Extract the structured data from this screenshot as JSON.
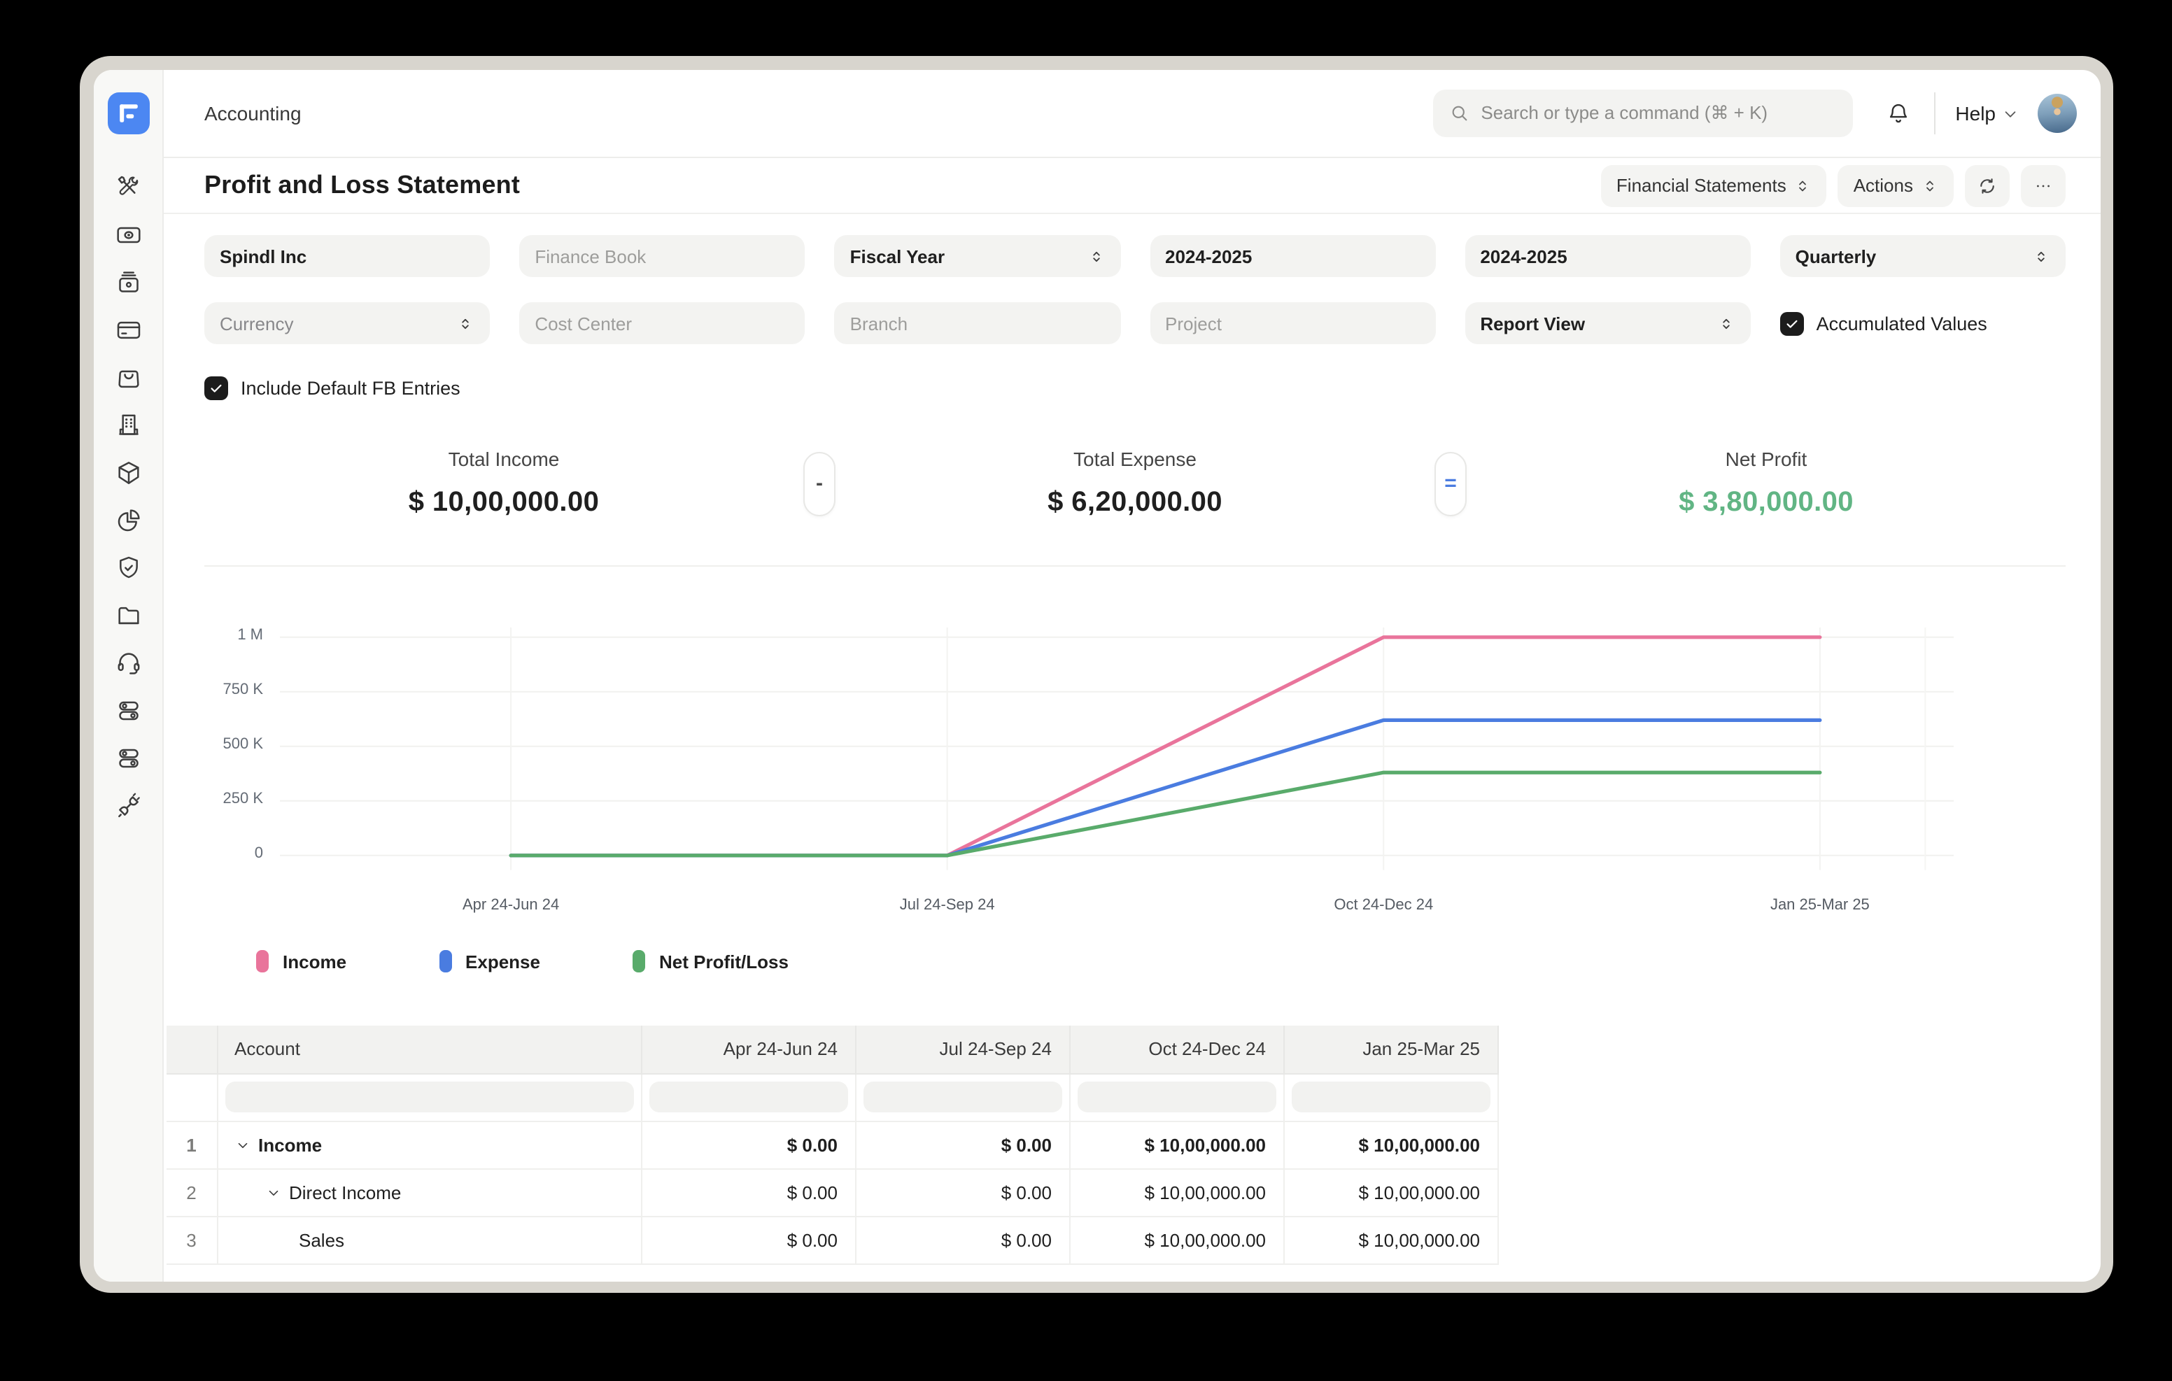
{
  "app": {
    "workspace_title": "Accounting"
  },
  "topbar": {
    "search_placeholder": "Search or type a command (⌘ + K)",
    "help_label": "Help"
  },
  "page": {
    "title": "Profit and Loss Statement",
    "report_group_label": "Financial Statements",
    "actions_label": "Actions"
  },
  "filters": {
    "company": "Spindl Inc",
    "finance_book_placeholder": "Finance Book",
    "filter_based_on": "Fiscal Year",
    "from_fiscal_year": "2024-2025",
    "to_fiscal_year": "2024-2025",
    "periodicity": "Quarterly",
    "currency": "Currency",
    "cost_center_placeholder": "Cost Center",
    "branch_placeholder": "Branch",
    "project_placeholder": "Project",
    "report_view": "Report View",
    "accumulated_values_label": "Accumulated Values",
    "include_default_fb_label": "Include Default FB Entries"
  },
  "summary": {
    "total_income_label": "Total Income",
    "total_income": "$ 10,00,000.00",
    "minus_sign": "-",
    "total_expense_label": "Total Expense",
    "total_expense": "$ 6,20,000.00",
    "equals_sign": "=",
    "net_profit_label": "Net Profit",
    "net_profit": "$ 3,80,000.00"
  },
  "chart_data": {
    "type": "line",
    "categories": [
      "Apr 24-Jun 24",
      "Jul 24-Sep 24",
      "Oct 24-Dec 24",
      "Jan 25-Mar 25"
    ],
    "series": [
      {
        "name": "Income",
        "color": "#e9749b",
        "values": [
          0,
          0,
          1000000,
          1000000
        ]
      },
      {
        "name": "Expense",
        "color": "#4a7ce0",
        "values": [
          0,
          0,
          620000,
          620000
        ]
      },
      {
        "name": "Net Profit/Loss",
        "color": "#59ab6b",
        "values": [
          0,
          0,
          380000,
          380000
        ]
      }
    ],
    "ylim": [
      0,
      1000000
    ],
    "yticks": [
      {
        "value": 0,
        "label": "0"
      },
      {
        "value": 250000,
        "label": "250 K"
      },
      {
        "value": 500000,
        "label": "500 K"
      },
      {
        "value": 750000,
        "label": "750 K"
      },
      {
        "value": 1000000,
        "label": "1 M"
      }
    ],
    "grid": true,
    "legend_position": "bottom",
    "title": "",
    "xlabel": "",
    "ylabel": ""
  },
  "table": {
    "columns": [
      "Account",
      "Apr 24-Jun 24",
      "Jul 24-Sep 24",
      "Oct 24-Dec 24",
      "Jan 25-Mar 25"
    ],
    "rows": [
      {
        "num": "1",
        "account": "Income",
        "values": [
          "$ 0.00",
          "$ 0.00",
          "$ 10,00,000.00",
          "$ 10,00,000.00"
        ]
      },
      {
        "num": "2",
        "account": "Direct Income",
        "values": [
          "$ 0.00",
          "$ 0.00",
          "$ 10,00,000.00",
          "$ 10,00,000.00"
        ]
      },
      {
        "num": "3",
        "account": "Sales",
        "values": [
          "$ 0.00",
          "$ 0.00",
          "$ 10,00,000.00",
          "$ 10,00,000.00"
        ]
      }
    ]
  },
  "sidebar_icons": [
    "tools",
    "banknote",
    "cash-register",
    "credit-card",
    "shopping-bag",
    "building",
    "package",
    "pie-chart",
    "shield-check",
    "folder",
    "headset",
    "toggles",
    "toggles-alt",
    "plug"
  ]
}
